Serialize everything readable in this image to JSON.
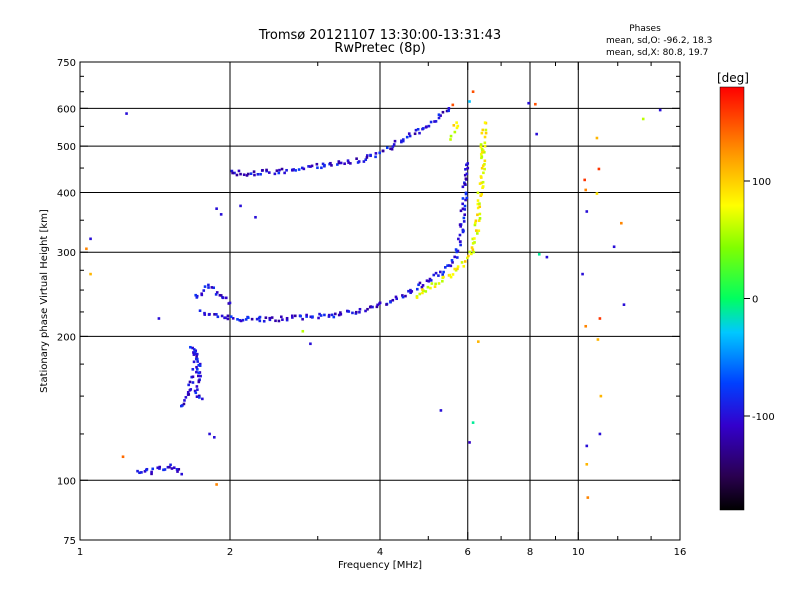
{
  "chart_data": {
    "type": "scatter",
    "title": "Tromsø 20121107 13:30:00-13:31:43",
    "subtitle": "RwPretec (8p)",
    "xlabel": "Frequency [MHz]",
    "ylabel": "Stationary phase Virtual Height [km]",
    "x_scale": "log",
    "y_scale": "log",
    "xlim": [
      1,
      16
    ],
    "ylim": [
      75,
      750
    ],
    "x_ticks": [
      1,
      2,
      4,
      6,
      8,
      10,
      16
    ],
    "x_ticks_minor": [
      3,
      5,
      7,
      9,
      12,
      14
    ],
    "y_ticks": [
      75,
      100,
      200,
      300,
      400,
      500,
      600,
      750
    ],
    "y_ticks_minor": [
      125,
      150,
      175,
      225,
      250,
      275,
      350,
      450,
      550,
      650,
      700
    ],
    "grid": true,
    "phase_info": {
      "heading": "Phases",
      "line_o": "mean, sd,O: -96.2, 18.3",
      "line_x": "mean, sd,X:  80.8, 19.7"
    },
    "colorbar": {
      "label": "[deg]",
      "range": [
        -180,
        180
      ],
      "ticks": [
        100,
        0,
        -100
      ],
      "tick_labels": [
        "100",
        "0",
        "-100"
      ]
    },
    "series": [
      {
        "mode": "O",
        "color_phase": -100,
        "segments": [
          [
            [
              1.3,
              104
            ],
            [
              1.34,
              105
            ],
            [
              1.38,
              104
            ],
            [
              1.42,
              106
            ],
            [
              1.48,
              105
            ],
            [
              1.5,
              107
            ],
            [
              1.55,
              106
            ],
            [
              1.6,
              103
            ]
          ],
          [
            [
              1.6,
              142
            ],
            [
              1.65,
              155
            ],
            [
              1.7,
              168
            ],
            [
              1.72,
              180
            ],
            [
              1.68,
              190
            ],
            [
              1.75,
              172
            ],
            [
              1.7,
              150
            ],
            [
              1.76,
              148
            ]
          ],
          [
            [
              1.7,
              240
            ],
            [
              1.76,
              250
            ],
            [
              1.82,
              255
            ],
            [
              1.9,
              245
            ],
            [
              2.0,
              235
            ]
          ],
          [
            [
              1.76,
              225
            ],
            [
              1.85,
              222
            ],
            [
              1.95,
              219
            ],
            [
              2.1,
              217
            ],
            [
              2.4,
              217
            ],
            [
              2.8,
              219
            ],
            [
              3.2,
              222
            ],
            [
              3.6,
              226
            ],
            [
              4.0,
              232
            ],
            [
              4.4,
              242
            ],
            [
              4.8,
              255
            ],
            [
              5.2,
              268
            ],
            [
              5.5,
              282
            ],
            [
              5.7,
              298
            ],
            [
              5.8,
              320
            ],
            [
              5.85,
              350
            ],
            [
              5.9,
              380
            ],
            [
              5.95,
              420
            ],
            [
              6.0,
              460
            ]
          ],
          [
            [
              2.0,
              440
            ],
            [
              2.2,
              438
            ],
            [
              2.5,
              442
            ],
            [
              2.8,
              448
            ],
            [
              3.0,
              455
            ],
            [
              3.3,
              460
            ],
            [
              3.6,
              466
            ],
            [
              3.9,
              480
            ],
            [
              4.2,
              498
            ],
            [
              4.5,
              518
            ],
            [
              4.8,
              540
            ],
            [
              5.1,
              560
            ],
            [
              5.3,
              580
            ],
            [
              5.5,
              600
            ]
          ]
        ]
      },
      {
        "mode": "X",
        "color_phase": 80,
        "segments": [
          [
            [
              4.7,
              242
            ],
            [
              5.0,
              252
            ],
            [
              5.3,
              262
            ],
            [
              5.6,
              272
            ],
            [
              5.9,
              285
            ],
            [
              6.1,
              300
            ],
            [
              6.2,
              320
            ],
            [
              6.3,
              350
            ],
            [
              6.35,
              390
            ],
            [
              6.4,
              430
            ],
            [
              6.45,
              470
            ],
            [
              6.5,
              500
            ]
          ],
          [
            [
              5.6,
              520
            ],
            [
              5.65,
              540
            ],
            [
              5.7,
              560
            ]
          ],
          [
            [
              6.4,
              480
            ],
            [
              6.45,
              520
            ],
            [
              6.5,
              560
            ]
          ]
        ]
      }
    ],
    "noise": [
      {
        "x": 1.05,
        "y": 320,
        "phase": -100
      },
      {
        "x": 1.03,
        "y": 305,
        "phase": 130
      },
      {
        "x": 1.05,
        "y": 270,
        "phase": 110
      },
      {
        "x": 1.24,
        "y": 585,
        "phase": -100
      },
      {
        "x": 1.22,
        "y": 112,
        "phase": 140
      },
      {
        "x": 1.44,
        "y": 218,
        "phase": -100
      },
      {
        "x": 1.88,
        "y": 370,
        "phase": -100
      },
      {
        "x": 1.92,
        "y": 360,
        "phase": -100
      },
      {
        "x": 1.88,
        "y": 98,
        "phase": 130
      },
      {
        "x": 1.82,
        "y": 125,
        "phase": -100
      },
      {
        "x": 1.86,
        "y": 123,
        "phase": -100
      },
      {
        "x": 2.25,
        "y": 355,
        "phase": -100
      },
      {
        "x": 2.1,
        "y": 375,
        "phase": -100
      },
      {
        "x": 2.9,
        "y": 193,
        "phase": -100
      },
      {
        "x": 2.8,
        "y": 205,
        "phase": 60
      },
      {
        "x": 5.3,
        "y": 140,
        "phase": -100
      },
      {
        "x": 6.05,
        "y": 120,
        "phase": -110
      },
      {
        "x": 6.15,
        "y": 132,
        "phase": -10
      },
      {
        "x": 6.3,
        "y": 195,
        "phase": 110
      },
      {
        "x": 6.15,
        "y": 650,
        "phase": 150
      },
      {
        "x": 6.05,
        "y": 620,
        "phase": -30
      },
      {
        "x": 5.6,
        "y": 610,
        "phase": 150
      },
      {
        "x": 7.95,
        "y": 615,
        "phase": -100
      },
      {
        "x": 8.2,
        "y": 612,
        "phase": 150
      },
      {
        "x": 8.25,
        "y": 530,
        "phase": -100
      },
      {
        "x": 8.35,
        "y": 297,
        "phase": -10
      },
      {
        "x": 8.65,
        "y": 293,
        "phase": -100
      },
      {
        "x": 10.3,
        "y": 425,
        "phase": 160
      },
      {
        "x": 10.35,
        "y": 405,
        "phase": 130
      },
      {
        "x": 10.4,
        "y": 365,
        "phase": -100
      },
      {
        "x": 10.2,
        "y": 270,
        "phase": -100
      },
      {
        "x": 10.35,
        "y": 210,
        "phase": 130
      },
      {
        "x": 10.4,
        "y": 118,
        "phase": -100
      },
      {
        "x": 10.4,
        "y": 108,
        "phase": 110
      },
      {
        "x": 10.45,
        "y": 92,
        "phase": 130
      },
      {
        "x": 10.9,
        "y": 520,
        "phase": 110
      },
      {
        "x": 11.0,
        "y": 448,
        "phase": 160
      },
      {
        "x": 10.9,
        "y": 398,
        "phase": 90
      },
      {
        "x": 11.05,
        "y": 218,
        "phase": 160
      },
      {
        "x": 10.95,
        "y": 197,
        "phase": 110
      },
      {
        "x": 11.1,
        "y": 150,
        "phase": 110
      },
      {
        "x": 11.05,
        "y": 125,
        "phase": -100
      },
      {
        "x": 11.8,
        "y": 308,
        "phase": -100
      },
      {
        "x": 12.2,
        "y": 345,
        "phase": 130
      },
      {
        "x": 12.35,
        "y": 233,
        "phase": -100
      },
      {
        "x": 13.5,
        "y": 570,
        "phase": 60
      },
      {
        "x": 14.6,
        "y": 595,
        "phase": -100
      }
    ]
  }
}
